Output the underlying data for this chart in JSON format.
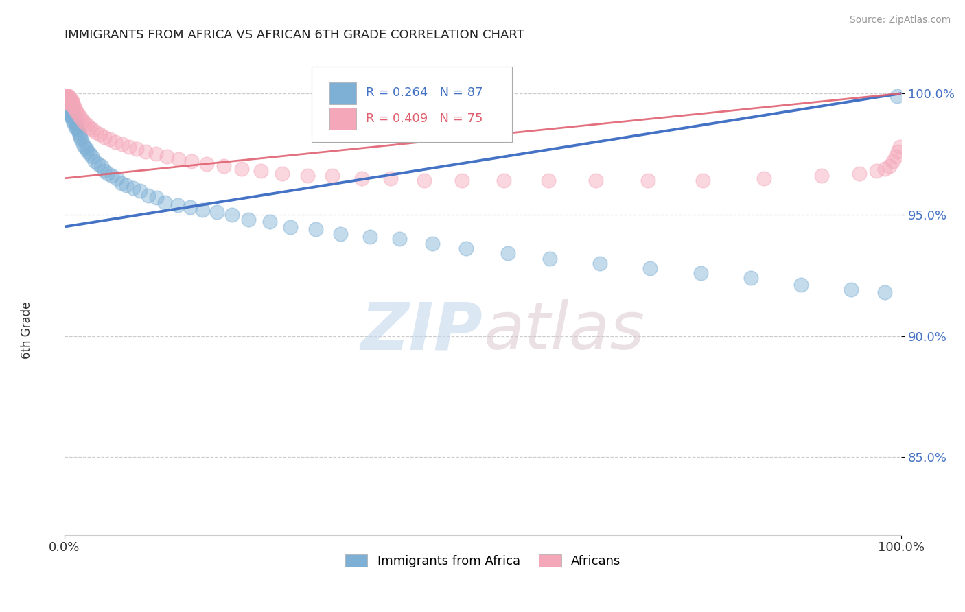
{
  "title": "IMMIGRANTS FROM AFRICA VS AFRICAN 6TH GRADE CORRELATION CHART",
  "source_text": "Source: ZipAtlas.com",
  "ylabel": "6th Grade",
  "xlim": [
    0.0,
    1.0
  ],
  "ylim": [
    0.818,
    1.018
  ],
  "yticks": [
    0.85,
    0.9,
    0.95,
    1.0
  ],
  "ytick_labels": [
    "85.0%",
    "90.0%",
    "95.0%",
    "100.0%"
  ],
  "xtick_labels": [
    "0.0%",
    "100.0%"
  ],
  "blue_color": "#7EB0D5",
  "pink_color": "#F4A7B9",
  "blue_line_color": "#4472C4",
  "pink_line_color": "#E06070",
  "blue_line_start_y": 0.945,
  "blue_line_end_y": 1.0,
  "pink_line_start_y": 0.965,
  "pink_line_end_y": 1.0,
  "blue_scatter_x": [
    0.001,
    0.001,
    0.001,
    0.001,
    0.001,
    0.002,
    0.002,
    0.002,
    0.002,
    0.002,
    0.003,
    0.003,
    0.003,
    0.003,
    0.004,
    0.004,
    0.004,
    0.005,
    0.005,
    0.005,
    0.006,
    0.006,
    0.006,
    0.007,
    0.007,
    0.008,
    0.008,
    0.009,
    0.009,
    0.01,
    0.01,
    0.011,
    0.011,
    0.012,
    0.013,
    0.013,
    0.014,
    0.015,
    0.016,
    0.017,
    0.018,
    0.019,
    0.02,
    0.022,
    0.024,
    0.026,
    0.028,
    0.03,
    0.033,
    0.036,
    0.04,
    0.044,
    0.048,
    0.052,
    0.057,
    0.062,
    0.068,
    0.074,
    0.082,
    0.09,
    0.1,
    0.11,
    0.12,
    0.135,
    0.15,
    0.165,
    0.182,
    0.2,
    0.22,
    0.245,
    0.27,
    0.3,
    0.33,
    0.365,
    0.4,
    0.44,
    0.48,
    0.53,
    0.58,
    0.64,
    0.7,
    0.76,
    0.82,
    0.88,
    0.94,
    0.98,
    0.995
  ],
  "blue_scatter_y": [
    0.998,
    0.997,
    0.996,
    0.995,
    0.994,
    0.998,
    0.997,
    0.996,
    0.995,
    0.993,
    0.998,
    0.996,
    0.994,
    0.992,
    0.997,
    0.995,
    0.993,
    0.996,
    0.994,
    0.992,
    0.995,
    0.993,
    0.991,
    0.994,
    0.992,
    0.993,
    0.991,
    0.992,
    0.99,
    0.991,
    0.989,
    0.99,
    0.988,
    0.989,
    0.988,
    0.986,
    0.987,
    0.986,
    0.985,
    0.984,
    0.983,
    0.982,
    0.981,
    0.979,
    0.978,
    0.977,
    0.976,
    0.975,
    0.974,
    0.972,
    0.971,
    0.97,
    0.968,
    0.967,
    0.966,
    0.965,
    0.963,
    0.962,
    0.961,
    0.96,
    0.958,
    0.957,
    0.955,
    0.954,
    0.953,
    0.952,
    0.951,
    0.95,
    0.948,
    0.947,
    0.945,
    0.944,
    0.942,
    0.941,
    0.94,
    0.938,
    0.936,
    0.934,
    0.932,
    0.93,
    0.928,
    0.926,
    0.924,
    0.921,
    0.919,
    0.918,
    0.999
  ],
  "pink_scatter_x": [
    0.001,
    0.001,
    0.001,
    0.002,
    0.002,
    0.002,
    0.003,
    0.003,
    0.003,
    0.003,
    0.004,
    0.004,
    0.004,
    0.005,
    0.005,
    0.005,
    0.006,
    0.006,
    0.007,
    0.007,
    0.008,
    0.008,
    0.009,
    0.009,
    0.01,
    0.011,
    0.012,
    0.013,
    0.015,
    0.017,
    0.019,
    0.021,
    0.024,
    0.027,
    0.03,
    0.034,
    0.038,
    0.043,
    0.048,
    0.054,
    0.061,
    0.069,
    0.077,
    0.086,
    0.097,
    0.109,
    0.122,
    0.136,
    0.152,
    0.17,
    0.19,
    0.212,
    0.235,
    0.26,
    0.29,
    0.32,
    0.355,
    0.39,
    0.43,
    0.475,
    0.525,
    0.578,
    0.635,
    0.697,
    0.763,
    0.836,
    0.905,
    0.95,
    0.97,
    0.98,
    0.986,
    0.99,
    0.993,
    0.996,
    0.998
  ],
  "pink_scatter_y": [
    0.999,
    0.998,
    0.997,
    0.999,
    0.998,
    0.997,
    0.999,
    0.998,
    0.997,
    0.996,
    0.999,
    0.998,
    0.997,
    0.999,
    0.998,
    0.996,
    0.998,
    0.997,
    0.998,
    0.996,
    0.997,
    0.996,
    0.997,
    0.995,
    0.996,
    0.995,
    0.994,
    0.993,
    0.992,
    0.991,
    0.99,
    0.989,
    0.988,
    0.987,
    0.986,
    0.985,
    0.984,
    0.983,
    0.982,
    0.981,
    0.98,
    0.979,
    0.978,
    0.977,
    0.976,
    0.975,
    0.974,
    0.973,
    0.972,
    0.971,
    0.97,
    0.969,
    0.968,
    0.967,
    0.966,
    0.966,
    0.965,
    0.965,
    0.964,
    0.964,
    0.964,
    0.964,
    0.964,
    0.964,
    0.964,
    0.965,
    0.966,
    0.967,
    0.968,
    0.969,
    0.97,
    0.972,
    0.974,
    0.976,
    0.978
  ]
}
